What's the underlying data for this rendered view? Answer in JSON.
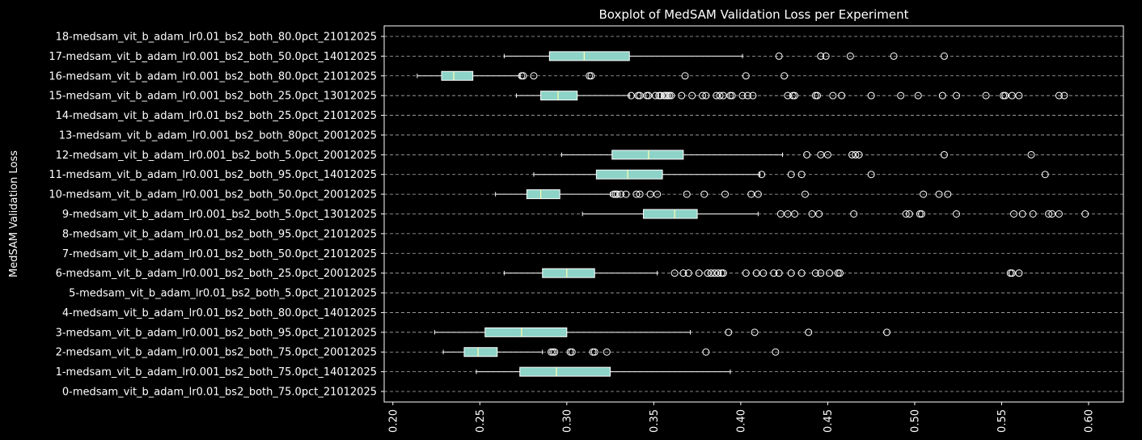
{
  "chart_data": {
    "type": "boxplot",
    "orientation": "horizontal",
    "title": "Boxplot of MedSAM Validation Loss per Experiment",
    "xlabel": "",
    "ylabel": "MedSAM Validation Loss",
    "xlim": [
      0.195,
      0.62
    ],
    "xticks": [
      0.2,
      0.25,
      0.3,
      0.35,
      0.4,
      0.45,
      0.5,
      0.55,
      0.6
    ],
    "xtick_labels": [
      "0.20",
      "0.25",
      "0.30",
      "0.35",
      "0.40",
      "0.45",
      "0.50",
      "0.55",
      "0.60"
    ],
    "grid": "y-dashed",
    "colors": {
      "background": "#000000",
      "box_fill": "#8dd3c7",
      "median": "#ffffb3",
      "line": "#ffffff",
      "grid": "#b0b0b0"
    },
    "categories": [
      "0-medsam_vit_b_adam_lr0.01_bs2_both_75.0pct_21012025",
      "1-medsam_vit_b_adam_lr0.001_bs2_both_75.0pct_14012025",
      "2-medsam_vit_b_adam_lr0.001_bs2_both_75.0pct_20012025",
      "3-medsam_vit_b_adam_lr0.001_bs2_both_95.0pct_21012025",
      "4-medsam_vit_b_adam_lr0.01_bs2_both_80.0pct_14012025",
      "5-medsam_vit_b_adam_lr0.01_bs2_both_5.0pct_21012025",
      "6-medsam_vit_b_adam_lr0.001_bs2_both_25.0pct_20012025",
      "7-medsam_vit_b_adam_lr0.01_bs2_both_50.0pct_21012025",
      "8-medsam_vit_b_adam_lr0.01_bs2_both_95.0pct_21012025",
      "9-medsam_vit_b_adam_lr0.001_bs2_both_5.0pct_13012025",
      "10-medsam_vit_b_adam_lr0.001_bs2_both_50.0pct_20012025",
      "11-medsam_vit_b_adam_lr0.001_bs2_both_95.0pct_14012025",
      "12-medsam_vit_b_adam_lr0.001_bs2_both_5.0pct_20012025",
      "13-medsam_vit_b_adam_lr0.001_bs2_both_80pct_20012025",
      "14-medsam_vit_b_adam_lr0.01_bs2_both_25.0pct_21012025",
      "15-medsam_vit_b_adam_lr0.001_bs2_both_25.0pct_13012025",
      "16-medsam_vit_b_adam_lr0.001_bs2_both_80.0pct_21012025",
      "17-medsam_vit_b_adam_lr0.001_bs2_both_50.0pct_14012025",
      "18-medsam_vit_b_adam_lr0.01_bs2_both_80.0pct_21012025"
    ],
    "boxes": [
      null,
      {
        "whislo": 0.248,
        "q1": 0.273,
        "med": 0.294,
        "q3": 0.325,
        "whishi": 0.394,
        "fliers": []
      },
      {
        "whislo": 0.229,
        "q1": 0.241,
        "med": 0.249,
        "q3": 0.26,
        "whishi": 0.286,
        "fliers": [
          0.291,
          0.292,
          0.293,
          0.302,
          0.303,
          0.315,
          0.316,
          0.323,
          0.38,
          0.42
        ]
      },
      {
        "whislo": 0.224,
        "q1": 0.253,
        "med": 0.274,
        "q3": 0.3,
        "whishi": 0.371,
        "fliers": [
          0.393,
          0.408,
          0.439,
          0.484
        ]
      },
      null,
      null,
      {
        "whislo": 0.264,
        "q1": 0.286,
        "med": 0.3,
        "q3": 0.316,
        "whishi": 0.352,
        "fliers": [
          0.362,
          0.367,
          0.37,
          0.376,
          0.381,
          0.383,
          0.385,
          0.387,
          0.389,
          0.39,
          0.403,
          0.409,
          0.413,
          0.419,
          0.422,
          0.429,
          0.435,
          0.443,
          0.446,
          0.451,
          0.456,
          0.457,
          0.555,
          0.556,
          0.56
        ]
      },
      null,
      null,
      {
        "whislo": 0.309,
        "q1": 0.344,
        "med": 0.362,
        "q3": 0.375,
        "whishi": 0.41,
        "fliers": [
          0.423,
          0.427,
          0.431,
          0.441,
          0.445,
          0.465,
          0.495,
          0.497,
          0.503,
          0.504,
          0.524,
          0.557,
          0.562,
          0.568,
          0.577,
          0.579,
          0.583,
          0.598
        ]
      },
      {
        "whislo": 0.259,
        "q1": 0.277,
        "med": 0.285,
        "q3": 0.296,
        "whishi": 0.325,
        "fliers": [
          0.327,
          0.328,
          0.329,
          0.331,
          0.334,
          0.34,
          0.342,
          0.348,
          0.352,
          0.369,
          0.379,
          0.391,
          0.406,
          0.41,
          0.437,
          0.505,
          0.514,
          0.519
        ]
      },
      {
        "whislo": 0.281,
        "q1": 0.317,
        "med": 0.335,
        "q3": 0.355,
        "whishi": 0.411,
        "fliers": [
          0.412,
          0.429,
          0.435,
          0.475,
          0.575
        ]
      },
      {
        "whislo": 0.297,
        "q1": 0.326,
        "med": 0.347,
        "q3": 0.367,
        "whishi": 0.424,
        "fliers": [
          0.438,
          0.446,
          0.45,
          0.464,
          0.466,
          0.468,
          0.517,
          0.567
        ]
      },
      null,
      null,
      {
        "whislo": 0.271,
        "q1": 0.285,
        "med": 0.295,
        "q3": 0.306,
        "whishi": 0.336,
        "fliers": [
          0.337,
          0.341,
          0.342,
          0.346,
          0.347,
          0.351,
          0.353,
          0.354,
          0.356,
          0.357,
          0.358,
          0.359,
          0.36,
          0.366,
          0.372,
          0.378,
          0.38,
          0.386,
          0.388,
          0.39,
          0.394,
          0.395,
          0.401,
          0.404,
          0.407,
          0.427,
          0.43,
          0.431,
          0.443,
          0.444,
          0.453,
          0.458,
          0.475,
          0.492,
          0.502,
          0.516,
          0.524,
          0.541,
          0.551,
          0.552,
          0.556,
          0.56,
          0.583,
          0.586
        ]
      },
      {
        "whislo": 0.214,
        "q1": 0.228,
        "med": 0.235,
        "q3": 0.246,
        "whishi": 0.273,
        "fliers": [
          0.274,
          0.275,
          0.281,
          0.313,
          0.314,
          0.368,
          0.403,
          0.425
        ]
      },
      {
        "whislo": 0.264,
        "q1": 0.29,
        "med": 0.31,
        "q3": 0.336,
        "whishi": 0.401,
        "fliers": [
          0.422,
          0.446,
          0.449,
          0.463,
          0.488,
          0.517
        ]
      },
      null
    ]
  }
}
